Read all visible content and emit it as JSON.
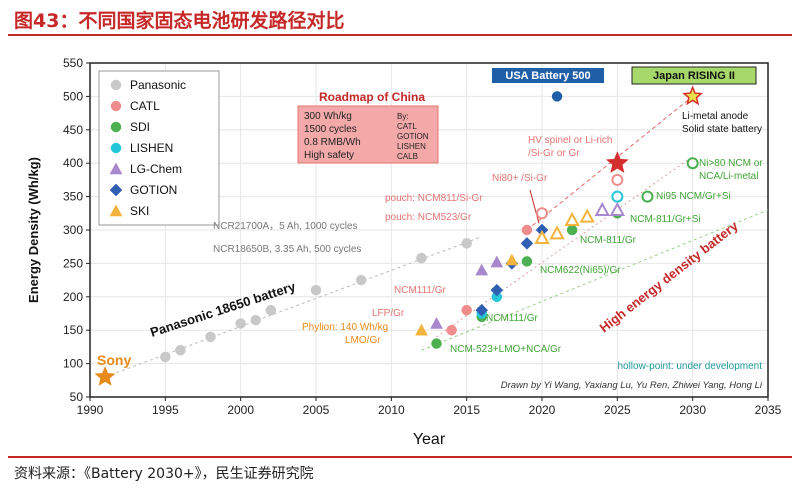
{
  "figure_title": "图43：不同国家固态电池研发路径对比",
  "source_note": "资料来源：《Battery 2030+》，民生证券研究院",
  "colors": {
    "accent": "#c62828",
    "Panasonic": "#c8c8c8",
    "CATL": "#f08c8c",
    "SDI": "#4caf50",
    "LISHEN": "#26c6da",
    "LG-Chem": "#a887cc",
    "GOTION": "#2f5fb3",
    "SKI": "#f2b43c",
    "usa_box": "#1f5fa8",
    "japan_box": "#a6d96a",
    "roadmap_box": "#f4a9a9",
    "star_red": "#d32f2f",
    "sony_star": "#e88a1a",
    "green_text": "#3fa535",
    "red_text": "#c62828",
    "pink_text": "#e57373",
    "teal_text": "#1f9a9a"
  },
  "chart_data": {
    "type": "scatter",
    "xlabel": "Year",
    "ylabel": "Energy Density (Wh/kg)",
    "xlim": [
      1990,
      2035
    ],
    "ylim": [
      50,
      550
    ],
    "xticks": [
      1990,
      1995,
      2000,
      2005,
      2010,
      2015,
      2020,
      2025,
      2030,
      2035
    ],
    "yticks": [
      50,
      100,
      150,
      200,
      250,
      300,
      350,
      400,
      450,
      500,
      550
    ],
    "grid": true,
    "legend_position": "top-left",
    "legend": [
      "Panasonic",
      "CATL",
      "SDI",
      "LISHEN",
      "LG-Chem",
      "GOTION",
      "SKI"
    ],
    "series": [
      {
        "name": "Panasonic",
        "marker": "circle",
        "points": [
          [
            1995,
            110
          ],
          [
            1996,
            120
          ],
          [
            1998,
            140
          ],
          [
            2000,
            160
          ],
          [
            2001,
            165
          ],
          [
            2002,
            180
          ],
          [
            2005,
            210
          ],
          [
            2008,
            225
          ],
          [
            2012,
            258
          ],
          [
            2015,
            280
          ],
          [
            2021,
            500
          ]
        ]
      },
      {
        "name": "CATL",
        "marker": "circle",
        "points": [
          [
            2014,
            150
          ],
          [
            2015,
            180
          ],
          [
            2019,
            300
          ],
          [
            2020,
            325
          ],
          [
            2025,
            375
          ]
        ]
      },
      {
        "name": "SDI",
        "marker": "circle",
        "points": [
          [
            2013,
            130
          ],
          [
            2016,
            170
          ],
          [
            2019,
            253
          ],
          [
            2022,
            300
          ],
          [
            2025,
            325
          ],
          [
            2027,
            350
          ],
          [
            2030,
            400
          ]
        ]
      },
      {
        "name": "LISHEN",
        "marker": "circle",
        "points": [
          [
            2016,
            175
          ],
          [
            2017,
            200
          ],
          [
            2025,
            350
          ]
        ]
      },
      {
        "name": "LG-Chem",
        "marker": "triangle",
        "points": [
          [
            2013,
            160
          ],
          [
            2016,
            240
          ],
          [
            2017,
            252
          ],
          [
            2024,
            330
          ],
          [
            2025,
            330
          ]
        ]
      },
      {
        "name": "GOTION",
        "marker": "diamond",
        "points": [
          [
            2016,
            180
          ],
          [
            2017,
            210
          ],
          [
            2018,
            250
          ],
          [
            2019,
            280
          ],
          [
            2020,
            300
          ]
        ]
      },
      {
        "name": "SKI",
        "marker": "triangle",
        "points": [
          [
            2012,
            150
          ],
          [
            2018,
            255
          ],
          [
            2020,
            288
          ],
          [
            2021,
            295
          ],
          [
            2022,
            315
          ],
          [
            2023,
            320
          ]
        ]
      }
    ],
    "stars": [
      {
        "label": "Sony",
        "x": 1991,
        "y": 80
      },
      {
        "label": "",
        "x": 2025,
        "y": 400
      },
      {
        "label": "",
        "x": 2030,
        "y": 500
      }
    ],
    "trend_lines": [
      {
        "label": "Panasonic 18650 battery",
        "from": [
          1991,
          80
        ],
        "to": [
          2016,
          290
        ]
      },
      {
        "label": "",
        "from": [
          2012,
          120
        ],
        "to": [
          2035,
          330
        ]
      },
      {
        "label": "",
        "from": [
          2019,
          300
        ],
        "to": [
          2030,
          500
        ]
      },
      {
        "label": "High energy density battery",
        "from": [
          2013,
          140
        ],
        "to": [
          2030,
          410
        ]
      }
    ],
    "annotations": {
      "sony": "Sony",
      "panasonic_line": "Panasonic 18650 battery",
      "high_energy": "High energy density battery",
      "ncr21700": "NCR21700A，5 Ah, 1000 cycles",
      "ncr18650": "NCR18650B, 3.35 Ah, 500 cycles",
      "pouch811": "pouch: NCM811/Si-Gr",
      "pouch523": "pouch: NCM523/Gr",
      "ncm111_gr_top": "NCM111/Gr",
      "lfp_gr": "LFP/Gr",
      "phylion_1": "Phylion: 140 Wh/kg",
      "phylion_2": "LMO/Gr",
      "ncm111_gr": "NCM111/Gr",
      "ncm523_lmo": "NCM-523+LMO+NCA/Gr",
      "ncm622": "NCM622(Ni65)/Gr",
      "ncm811_gr": "NCM-811/Gr",
      "ncm811_gr_si": "NCM-811/Gr+Si",
      "ni95": "Ni95 NCM/Gr+Si",
      "ni80_gr": "Ni80+ /Si-Gr",
      "hv_1": "HV spinel or Li-rich",
      "hv_2": "/Si-Gr or Gr",
      "ni80_ncm_1": "Ni>80 NCM or",
      "ni80_ncm_2": "NCA/Li-metal",
      "limetal_1": "Li-metal anode",
      "limetal_2": "Solid state battery",
      "hollow": "hollow-point: under development",
      "drawn_by": "Drawn by Yi Wang, Yaxiang Lu, Yu Ren, Zhiwei Yang, Hong Li"
    },
    "boxes": {
      "usa": "USA Battery 500",
      "japan": "Japan RISING II",
      "roadmap_title": "Roadmap of China",
      "roadmap_left": [
        "300 Wh/kg",
        "1500 cycles",
        "0.8 RMB/Wh",
        "High safety"
      ],
      "roadmap_right": [
        "By:",
        "CATL",
        "GOTION",
        "LISHEN",
        "CALB"
      ]
    }
  }
}
